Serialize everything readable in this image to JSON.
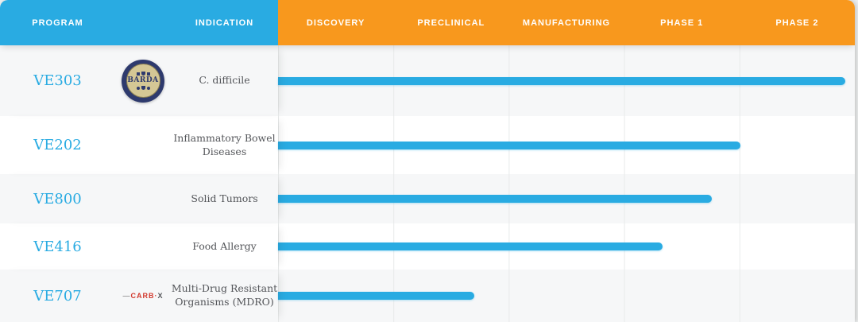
{
  "header": {
    "program": "PROGRAM",
    "indication": "INDICATION",
    "phases": [
      "DISCOVERY",
      "PRECLINICAL",
      "MANUFACTURING",
      "PHASE 1",
      "PHASE 2"
    ]
  },
  "colors": {
    "accent_blue": "#29abe2",
    "header_orange": "#f8981d",
    "row_alt_gray": "#f6f7f8",
    "gridline": "#e8eaea",
    "indication_text": "#54565a",
    "barda_navy": "#2e3a6d",
    "barda_tan": "#d4c795",
    "carbx_red": "#d2392e"
  },
  "badges": {
    "barda": {
      "label": "BARDA"
    },
    "carbx": {
      "dash": "—",
      "word": "CARB",
      "dot": "·",
      "x": "X"
    }
  },
  "chart_data": {
    "type": "bar",
    "title": "",
    "categories": [
      "DISCOVERY",
      "PRECLINICAL",
      "MANUFACTURING",
      "PHASE 1",
      "PHASE 2"
    ],
    "xlim_phases": [
      0,
      5
    ],
    "grid": true,
    "rows": [
      {
        "program": "VE303",
        "indication": "C. difficile",
        "partner_badge": "BARDA",
        "phases_completed": 4.9,
        "bar_pct": 98.4
      },
      {
        "program": "VE202",
        "indication": "Inflammatory Bowel Diseases",
        "partner_badge": null,
        "phases_completed": 4.0,
        "bar_pct": 80.1
      },
      {
        "program": "VE800",
        "indication": "Solid Tumors",
        "partner_badge": null,
        "phases_completed": 3.8,
        "bar_pct": 75.2
      },
      {
        "program": "VE416",
        "indication": "Food Allergy",
        "partner_badge": null,
        "phases_completed": 3.3,
        "bar_pct": 66.7
      },
      {
        "program": "VE707",
        "indication": "Multi-Drug Resistant Organisms (MDRO)",
        "partner_badge": "CARB-X",
        "phases_completed": 1.7,
        "bar_pct": 34.0
      }
    ]
  }
}
